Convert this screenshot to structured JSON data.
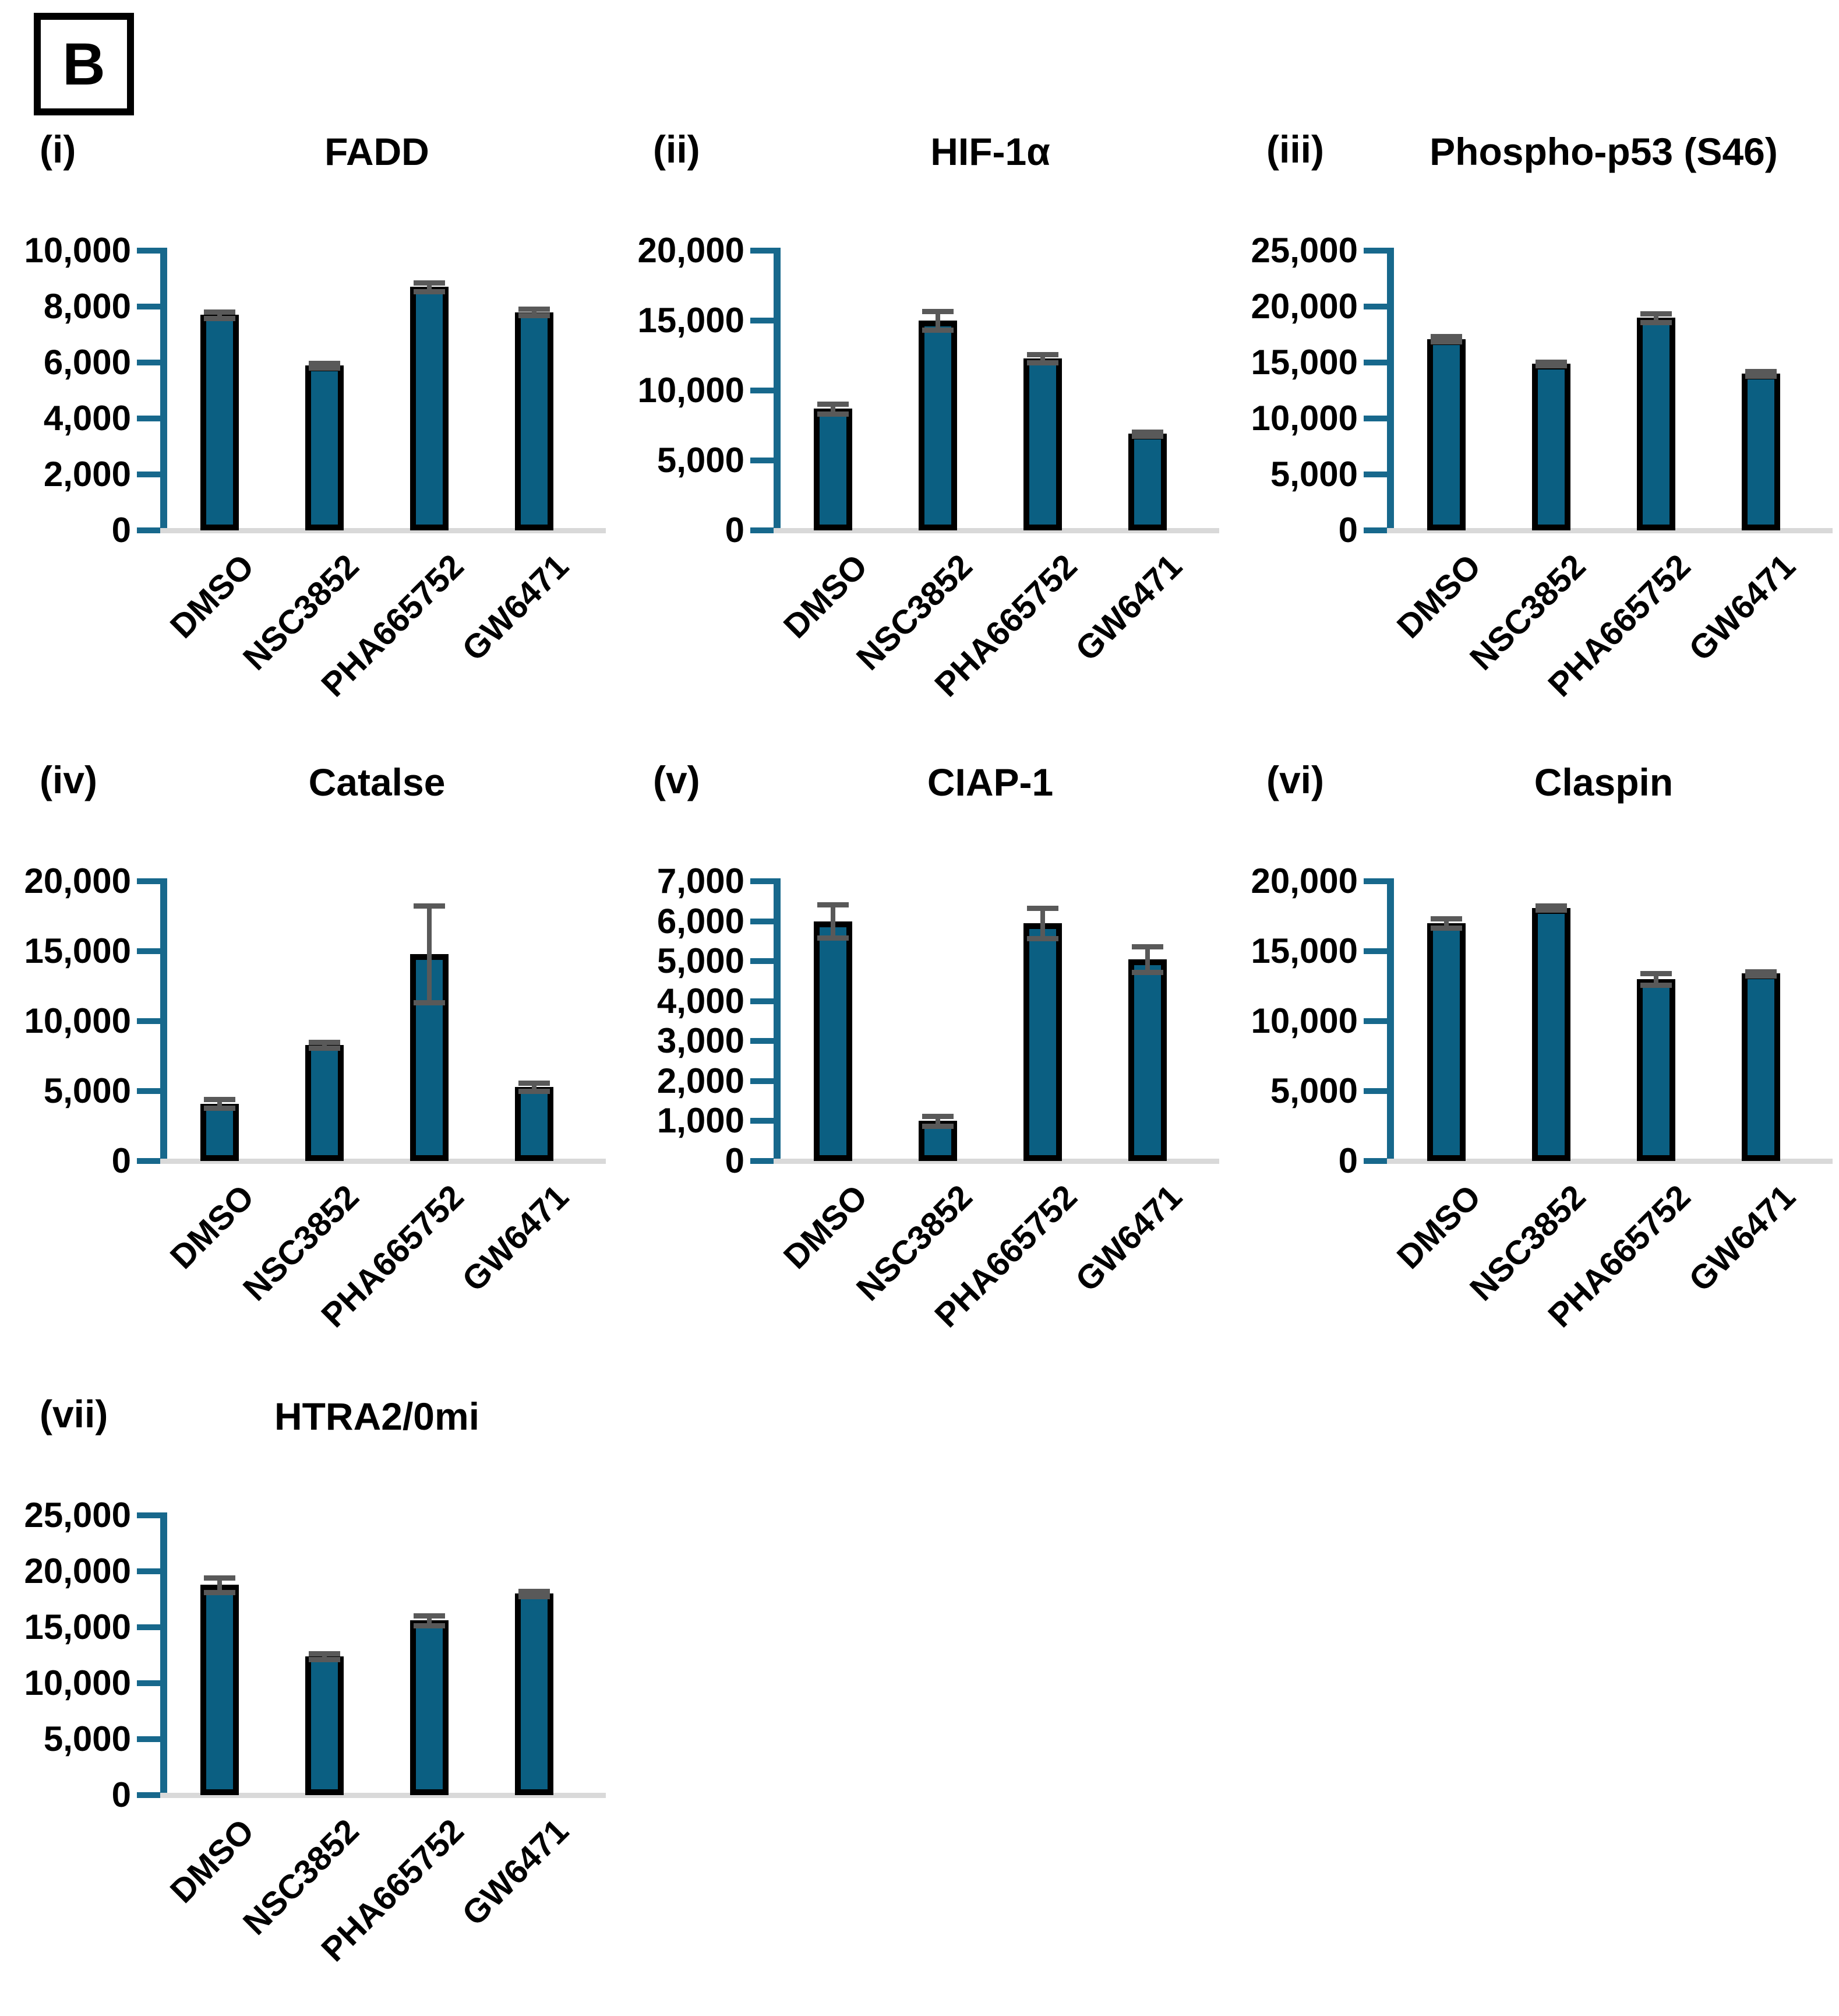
{
  "figure": {
    "panel_badge": "B",
    "background": "#ffffff"
  },
  "colors": {
    "bar_fill": "#0B5F82",
    "axis": "#17688C",
    "error_bar": "#595959",
    "baseline": "#D9D9D9",
    "text": "#000000"
  },
  "chart_data": [
    {
      "type": "bar",
      "index_label": "(i)",
      "title": "FADD",
      "categories": [
        "DMSO",
        "NSC3852",
        "PHA665752",
        "GW6471"
      ],
      "values": [
        7700,
        5900,
        8700,
        7800
      ],
      "errors": [
        120,
        80,
        150,
        120
      ],
      "ylim": [
        0,
        10000
      ],
      "ytick_step": 2000,
      "grid": false,
      "legend": "none"
    },
    {
      "type": "bar",
      "index_label": "(ii)",
      "title": "HIF-1α",
      "categories": [
        "DMSO",
        "NSC3852",
        "PHA665752",
        "GW6471"
      ],
      "values": [
        8700,
        15000,
        12300,
        6900
      ],
      "errors": [
        350,
        650,
        300,
        150
      ],
      "ylim": [
        0,
        20000
      ],
      "ytick_step": 5000,
      "grid": false,
      "legend": "none"
    },
    {
      "type": "bar",
      "index_label": "(iii)",
      "title": "Phospho-p53 (S46)",
      "categories": [
        "DMSO",
        "NSC3852",
        "PHA665752",
        "GW6471"
      ],
      "values": [
        17100,
        14900,
        19000,
        14000
      ],
      "errors": [
        250,
        150,
        400,
        200
      ],
      "ylim": [
        0,
        25000
      ],
      "ytick_step": 5000,
      "grid": false,
      "legend": "none"
    },
    {
      "type": "bar",
      "index_label": "(iv)",
      "title": "Catalse",
      "categories": [
        "DMSO",
        "NSC3852",
        "PHA665752",
        "GW6471"
      ],
      "values": [
        4100,
        8300,
        14800,
        5300
      ],
      "errors": [
        300,
        200,
        3450,
        280
      ],
      "ylim": [
        0,
        20000
      ],
      "ytick_step": 5000,
      "grid": false,
      "legend": "none"
    },
    {
      "type": "bar",
      "index_label": "(v)",
      "title": "CIAP-1",
      "categories": [
        "DMSO",
        "NSC3852",
        "PHA665752",
        "GW6471"
      ],
      "values": [
        6000,
        1000,
        5950,
        5050
      ],
      "errors": [
        420,
        130,
        380,
        320
      ],
      "ylim": [
        0,
        7000
      ],
      "ytick_step": 1000,
      "grid": false,
      "legend": "none"
    },
    {
      "type": "bar",
      "index_label": "(vi)",
      "title": "Claspin",
      "categories": [
        "DMSO",
        "NSC3852",
        "PHA665752",
        "GW6471"
      ],
      "values": [
        17000,
        18100,
        13000,
        13400
      ],
      "errors": [
        350,
        150,
        400,
        150
      ],
      "ylim": [
        0,
        20000
      ],
      "ytick_step": 5000,
      "grid": false,
      "legend": "none"
    },
    {
      "type": "bar",
      "index_label": "(vii)",
      "title": "HTRA2/0mi",
      "categories": [
        "DMSO",
        "NSC3852",
        "PHA665752",
        "GW6471"
      ],
      "values": [
        18800,
        12400,
        15600,
        18000
      ],
      "errors": [
        650,
        250,
        450,
        250
      ],
      "ylim": [
        0,
        25000
      ],
      "ytick_step": 5000,
      "grid": false,
      "legend": "none"
    }
  ]
}
